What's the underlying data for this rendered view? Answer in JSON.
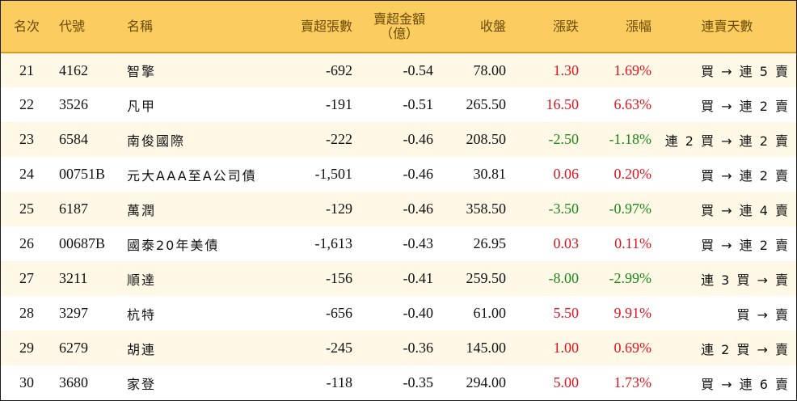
{
  "header": {
    "rank": "名次",
    "code": "代號",
    "name": "名稱",
    "net_sell_lots": "賣超張數",
    "net_sell_amount_line1": "賣超金額",
    "net_sell_amount_line2": "（億）",
    "close": "收盤",
    "change": "漲跌",
    "change_pct": "漲幅",
    "streak": "連賣天數"
  },
  "rows": [
    {
      "rank": "21",
      "code": "4162",
      "name": "智擎",
      "lots": "-692",
      "amount": "-0.54",
      "close": "78.00",
      "change": "1.30",
      "pct": "1.69%",
      "dir": "up",
      "streak": "買 → 連 5 賣"
    },
    {
      "rank": "22",
      "code": "3526",
      "name": "凡甲",
      "lots": "-191",
      "amount": "-0.51",
      "close": "265.50",
      "change": "16.50",
      "pct": "6.63%",
      "dir": "up",
      "streak": "買 → 連 2 賣"
    },
    {
      "rank": "23",
      "code": "6584",
      "name": "南俊國際",
      "lots": "-222",
      "amount": "-0.46",
      "close": "208.50",
      "change": "-2.50",
      "pct": "-1.18%",
      "dir": "down",
      "streak": "連 2 買 → 連 2 賣"
    },
    {
      "rank": "24",
      "code": "00751B",
      "name": "元大AAA至A公司債",
      "lots": "-1,501",
      "amount": "-0.46",
      "close": "30.81",
      "change": "0.06",
      "pct": "0.20%",
      "dir": "up",
      "streak": "買 → 連 2 賣"
    },
    {
      "rank": "25",
      "code": "6187",
      "name": "萬潤",
      "lots": "-129",
      "amount": "-0.46",
      "close": "358.50",
      "change": "-3.50",
      "pct": "-0.97%",
      "dir": "down",
      "streak": "買 → 連 4 賣"
    },
    {
      "rank": "26",
      "code": "00687B",
      "name": "國泰20年美債",
      "lots": "-1,613",
      "amount": "-0.43",
      "close": "26.95",
      "change": "0.03",
      "pct": "0.11%",
      "dir": "up",
      "streak": "買 → 連 2 賣"
    },
    {
      "rank": "27",
      "code": "3211",
      "name": "順達",
      "lots": "-156",
      "amount": "-0.41",
      "close": "259.50",
      "change": "-8.00",
      "pct": "-2.99%",
      "dir": "down",
      "streak": "連 3 買 → 賣"
    },
    {
      "rank": "28",
      "code": "3297",
      "name": "杭特",
      "lots": "-656",
      "amount": "-0.40",
      "close": "61.00",
      "change": "5.50",
      "pct": "9.91%",
      "dir": "up",
      "streak": "買 → 賣"
    },
    {
      "rank": "29",
      "code": "6279",
      "name": "胡連",
      "lots": "-245",
      "amount": "-0.36",
      "close": "145.00",
      "change": "1.00",
      "pct": "0.69%",
      "dir": "up",
      "streak": "連 2 買 → 賣"
    },
    {
      "rank": "30",
      "code": "3680",
      "name": "家登",
      "lots": "-118",
      "amount": "-0.35",
      "close": "294.00",
      "change": "5.00",
      "pct": "1.73%",
      "dir": "up",
      "streak": "買 → 連 6 賣"
    }
  ],
  "colors": {
    "header_bg": "#fbcc5f",
    "header_text": "#6b4a00",
    "row_odd_bg": "#fff8e6",
    "up": "#e0141e",
    "down": "#1a8a1a"
  }
}
